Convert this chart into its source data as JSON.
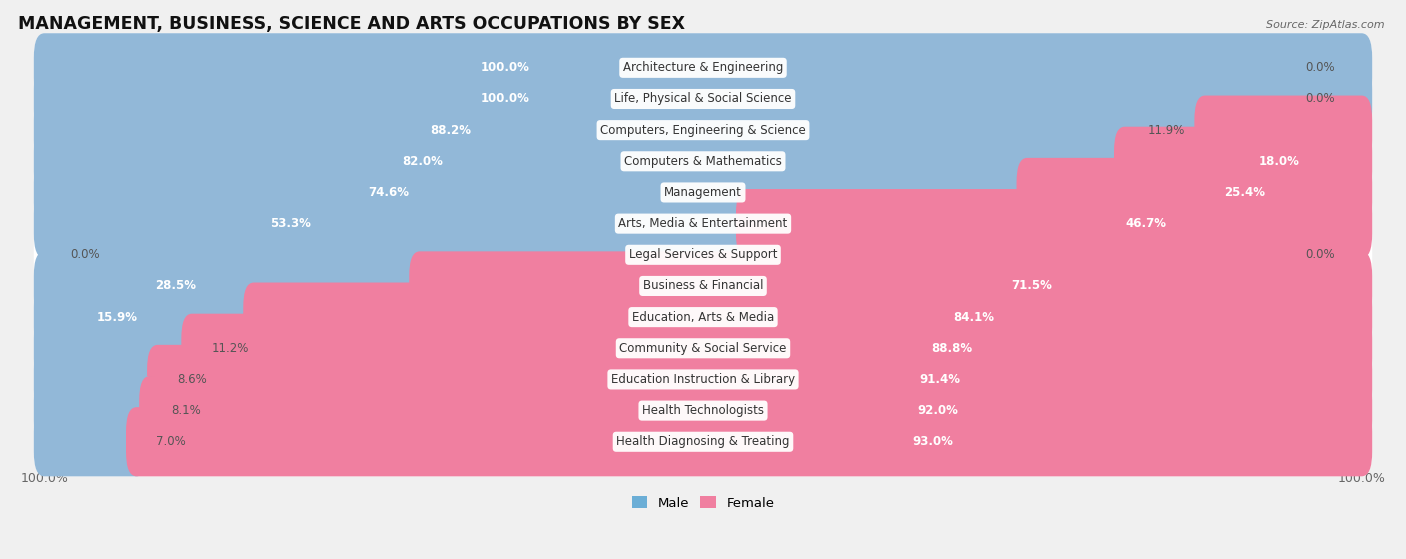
{
  "title": "MANAGEMENT, BUSINESS, SCIENCE AND ARTS OCCUPATIONS BY SEX",
  "source": "Source: ZipAtlas.com",
  "categories": [
    "Architecture & Engineering",
    "Life, Physical & Social Science",
    "Computers, Engineering & Science",
    "Computers & Mathematics",
    "Management",
    "Arts, Media & Entertainment",
    "Legal Services & Support",
    "Business & Financial",
    "Education, Arts & Media",
    "Community & Social Service",
    "Education Instruction & Library",
    "Health Technologists",
    "Health Diagnosing & Treating"
  ],
  "male_pct": [
    100.0,
    100.0,
    88.2,
    82.0,
    74.6,
    53.3,
    0.0,
    28.5,
    15.9,
    11.2,
    8.6,
    8.1,
    7.0
  ],
  "female_pct": [
    0.0,
    0.0,
    11.9,
    18.0,
    25.4,
    46.7,
    0.0,
    71.5,
    84.1,
    88.8,
    91.4,
    92.0,
    93.0
  ],
  "male_color": "#92b8d8",
  "female_color": "#f07fa0",
  "background_color": "#f0f0f0",
  "row_bg_color": "#e8e8e8",
  "bar_height": 0.62,
  "title_fontsize": 12.5,
  "tick_fontsize": 9,
  "cat_fontsize": 8.5,
  "pct_fontsize": 8.5,
  "legend_male_color": "#6baed6",
  "legend_female_color": "#f07fa0"
}
